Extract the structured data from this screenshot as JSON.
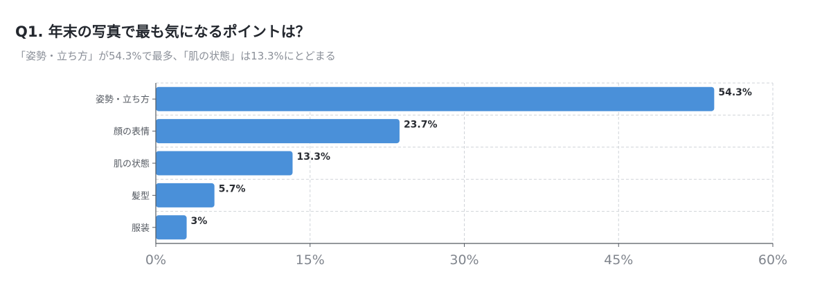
{
  "title": "Q1. 年末の写真で最も気になるポイントは？",
  "subtitle": "「姿勢・立ち方」が54.3%で最多、「肌の状態」は13.3%にとどまる",
  "colors": {
    "bar": "#4a90d9",
    "grid": "#cfd3d8",
    "axis": "#555a62"
  },
  "chart_data": {
    "type": "bar",
    "orientation": "horizontal",
    "categories": [
      "姿勢・立ち方",
      "顔の表情",
      "肌の状態",
      "髪型",
      "服装"
    ],
    "values": [
      54.3,
      23.7,
      13.3,
      5.7,
      3
    ],
    "value_labels": [
      "54.3%",
      "23.7%",
      "13.3%",
      "5.7%",
      "3%"
    ],
    "xlim": [
      0,
      60
    ],
    "xticks": [
      0,
      15,
      30,
      45,
      60
    ],
    "xtick_labels": [
      "0%",
      "15%",
      "30%",
      "45%",
      "60%"
    ],
    "grid": true
  }
}
